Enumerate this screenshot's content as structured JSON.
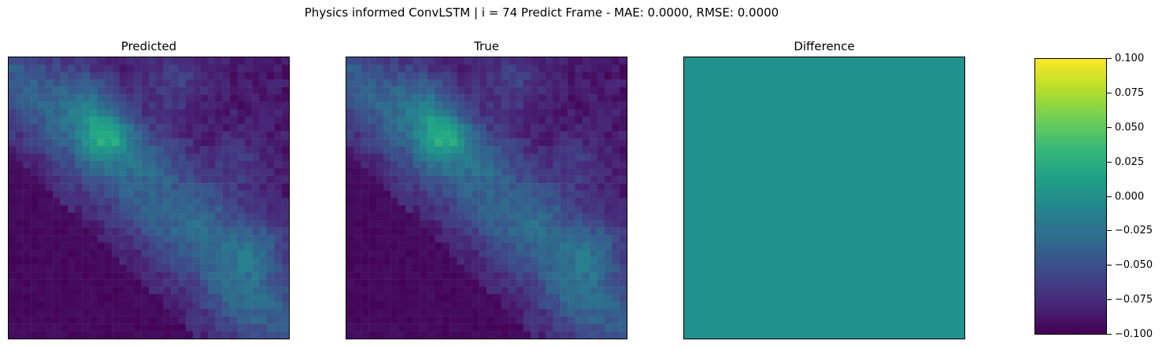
{
  "figure": {
    "suptitle": "Physics informed ConvLSTM | i = 74 Predict Frame - MAE: 0.0000, RMSE: 0.0000"
  },
  "chart_data": [
    {
      "type": "heatmap",
      "title": "Predicted",
      "grid_size": [
        38,
        38
      ],
      "pattern": "diagonal band of elevated values from top-left to bottom-right over a dark background; hotspot near upper-left-center",
      "colormap": "viridis",
      "axes": "hidden"
    },
    {
      "type": "heatmap",
      "title": "True",
      "grid_size": [
        38,
        38
      ],
      "pattern": "same as Predicted (identical field)",
      "colormap": "viridis",
      "axes": "hidden"
    },
    {
      "type": "heatmap",
      "title": "Difference",
      "uniform_value": 0.0,
      "colormap": "viridis",
      "axes": "hidden"
    }
  ],
  "colorbar": {
    "min": -0.1,
    "max": 0.1,
    "ticks": [
      "0.100",
      "0.075",
      "0.050",
      "0.025",
      "0.000",
      "−0.025",
      "−0.050",
      "−0.075",
      "−0.100"
    ],
    "colors": [
      "#fde725",
      "#b5de2b",
      "#6ece58",
      "#35b779",
      "#1f9e89",
      "#26828e",
      "#31688e",
      "#3e4989",
      "#482878",
      "#440154"
    ]
  },
  "panel_colors": {
    "low": "#440154",
    "mid": "#2a788e",
    "high": "#7ad151",
    "difference": "#21918c"
  }
}
